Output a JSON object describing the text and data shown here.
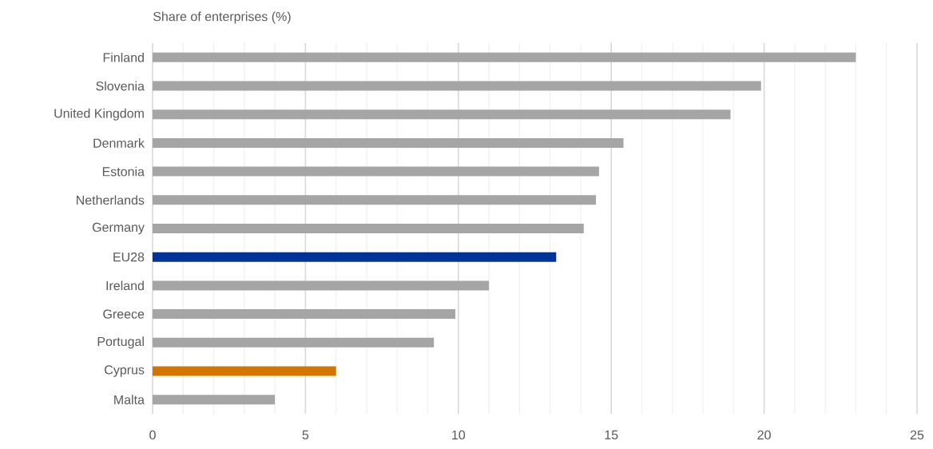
{
  "chart_data": {
    "type": "bar",
    "orientation": "horizontal",
    "title": "Share of enterprises (%)",
    "categories": [
      "Finland",
      "Slovenia",
      "United Kingdom",
      "Denmark",
      "Estonia",
      "Netherlands",
      "Germany",
      "EU28",
      "Ireland",
      "Greece",
      "Portugal",
      "Cyprus",
      "Malta"
    ],
    "values": [
      23.0,
      19.9,
      18.9,
      15.4,
      14.6,
      14.5,
      14.1,
      13.2,
      11.0,
      9.9,
      9.2,
      6.0,
      4.0
    ],
    "colors": [
      "#a5a5a5",
      "#a5a5a5",
      "#a5a5a5",
      "#a5a5a5",
      "#a5a5a5",
      "#a5a5a5",
      "#a5a5a5",
      "#003399",
      "#a5a5a5",
      "#a5a5a5",
      "#a5a5a5",
      "#d47500",
      "#a5a5a5"
    ],
    "xlim": [
      0,
      25
    ],
    "xticks": [
      0,
      5,
      10,
      15,
      20,
      25
    ],
    "grid": "x"
  }
}
